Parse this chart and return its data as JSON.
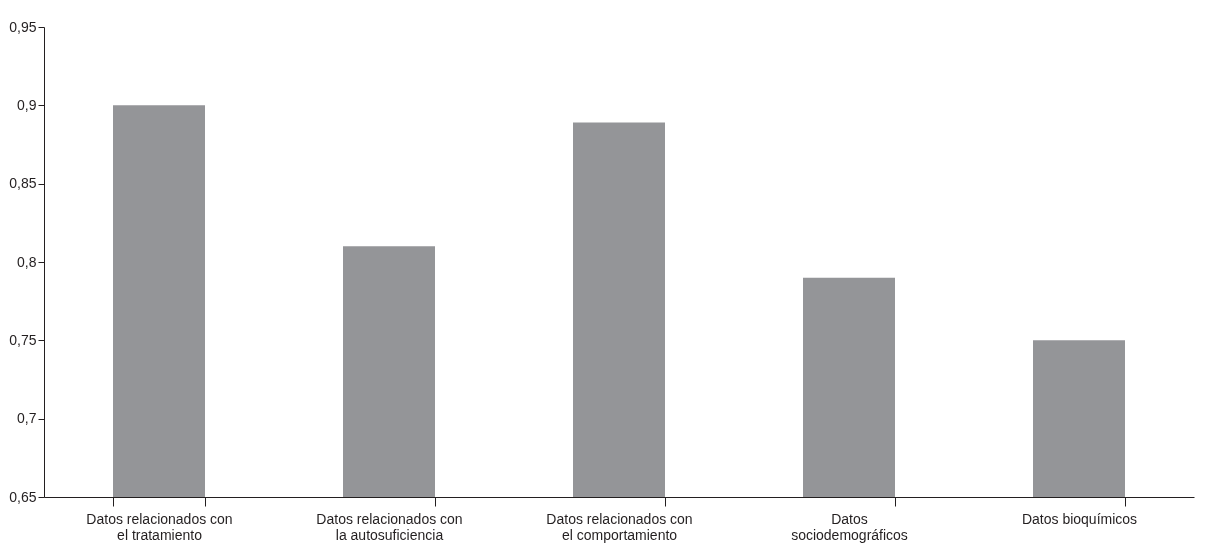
{
  "chart_data": {
    "type": "bar",
    "categories": [
      "Datos relacionados con el tratamiento",
      "Datos relacionados con la autosuficiencia",
      "Datos relacionados con el comportamiento",
      "Datos sociodemográficos",
      "Datos bioquímicos"
    ],
    "values": [
      0.9,
      0.81,
      0.889,
      0.79,
      0.75
    ],
    "color": "#949598",
    "ylim": [
      0.65,
      0.95
    ],
    "yticks": [
      {
        "value": 0.65,
        "label": "0,65"
      },
      {
        "value": 0.7,
        "label": "0,7"
      },
      {
        "value": 0.75,
        "label": "0,75"
      },
      {
        "value": 0.8,
        "label": "0,8"
      },
      {
        "value": 0.85,
        "label": "0,85"
      },
      {
        "value": 0.9,
        "label": "0,9"
      },
      {
        "value": 0.95,
        "label": "0,95"
      }
    ],
    "grid": false
  }
}
